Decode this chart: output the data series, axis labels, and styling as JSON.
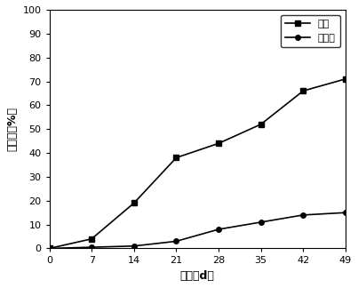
{
  "x": [
    0,
    7,
    14,
    21,
    28,
    35,
    42,
    49
  ],
  "y_jiajun": [
    0,
    4,
    19,
    38,
    44,
    52,
    66,
    71
  ],
  "y_bujiajun": [
    0,
    0.5,
    1,
    3,
    8,
    11,
    14,
    15
  ],
  "label_jiajun": "加菌",
  "label_bujiajun": "不加菌",
  "xlabel": "时间（d）",
  "ylabel": "降解率（%）",
  "xlim": [
    0,
    49
  ],
  "ylim": [
    0,
    100
  ],
  "xticks": [
    0,
    7,
    14,
    21,
    28,
    35,
    42,
    49
  ],
  "yticks": [
    0,
    10,
    20,
    30,
    40,
    50,
    60,
    70,
    80,
    90,
    100
  ],
  "line_color": "#000000",
  "marker_square": "s",
  "marker_circle": "o",
  "marker_size": 4,
  "line_width": 1.2,
  "background_color": "#ffffff",
  "legend_fontsize": 8,
  "axis_fontsize": 9,
  "tick_fontsize": 8
}
